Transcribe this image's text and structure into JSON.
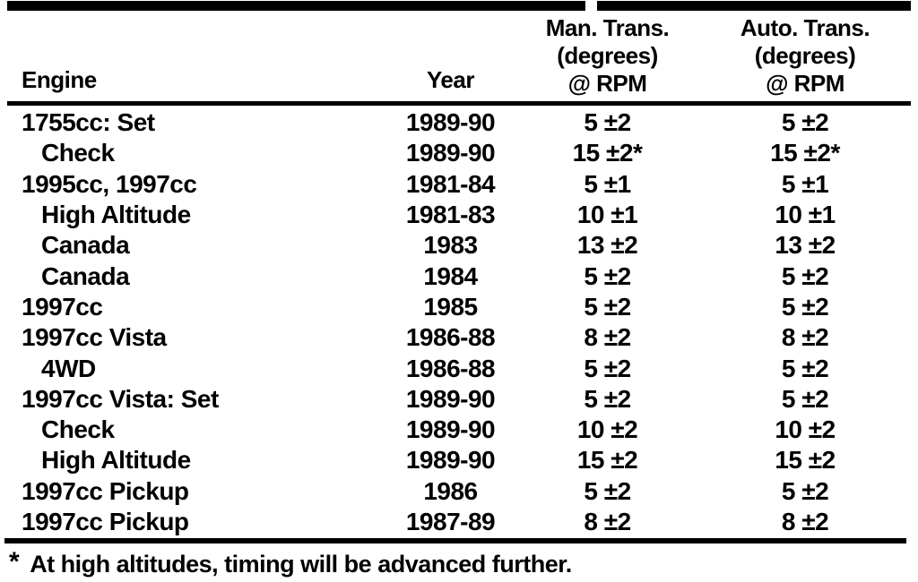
{
  "table": {
    "columns": {
      "engine": "Engine",
      "year": "Year",
      "man_trans": [
        "Man. Trans.",
        "(degrees)",
        "@ RPM"
      ],
      "auto_trans": [
        "Auto. Trans.",
        "(degrees)",
        "@ RPM"
      ]
    },
    "rows": [
      {
        "engine": "1755cc: Set",
        "indent": false,
        "year": "1989-90",
        "man": "5 ±2",
        "auto": "5 ±2"
      },
      {
        "engine": "Check",
        "indent": true,
        "year": "1989-90",
        "man": "15 ±2*",
        "auto": "15 ±2*"
      },
      {
        "engine": "1995cc, 1997cc",
        "indent": false,
        "year": "1981-84",
        "man": "5 ±1",
        "auto": "5 ±1"
      },
      {
        "engine": "High Altitude",
        "indent": true,
        "year": "1981-83",
        "man": "10 ±1",
        "auto": "10 ±1"
      },
      {
        "engine": "Canada",
        "indent": true,
        "year": "1983",
        "man": "13 ±2",
        "auto": "13 ±2"
      },
      {
        "engine": "Canada",
        "indent": true,
        "year": "1984",
        "man": "5 ±2",
        "auto": "5 ±2"
      },
      {
        "engine": "1997cc",
        "indent": false,
        "year": "1985",
        "man": "5 ±2",
        "auto": "5 ±2"
      },
      {
        "engine": "1997cc Vista",
        "indent": false,
        "year": "1986-88",
        "man": "8 ±2",
        "auto": "8 ±2"
      },
      {
        "engine": "4WD",
        "indent": true,
        "year": "1986-88",
        "man": "5 ±2",
        "auto": "5 ±2"
      },
      {
        "engine": "1997cc Vista: Set",
        "indent": false,
        "year": "1989-90",
        "man": "5 ±2",
        "auto": "5 ±2"
      },
      {
        "engine": "Check",
        "indent": true,
        "year": "1989-90",
        "man": "10 ±2",
        "auto": "10 ±2"
      },
      {
        "engine": "High Altitude",
        "indent": true,
        "year": "1989-90",
        "man": "15 ±2",
        "auto": "15 ±2"
      },
      {
        "engine": "1997cc Pickup",
        "indent": false,
        "year": "1986",
        "man": "5 ±2",
        "auto": "5 ±2"
      },
      {
        "engine": "1997cc Pickup",
        "indent": false,
        "year": "1987-89",
        "man": "8 ±2",
        "auto": "8 ±2"
      }
    ],
    "footnote": {
      "marker": "*",
      "text": "At high altitudes, timing will be advanced further."
    }
  }
}
